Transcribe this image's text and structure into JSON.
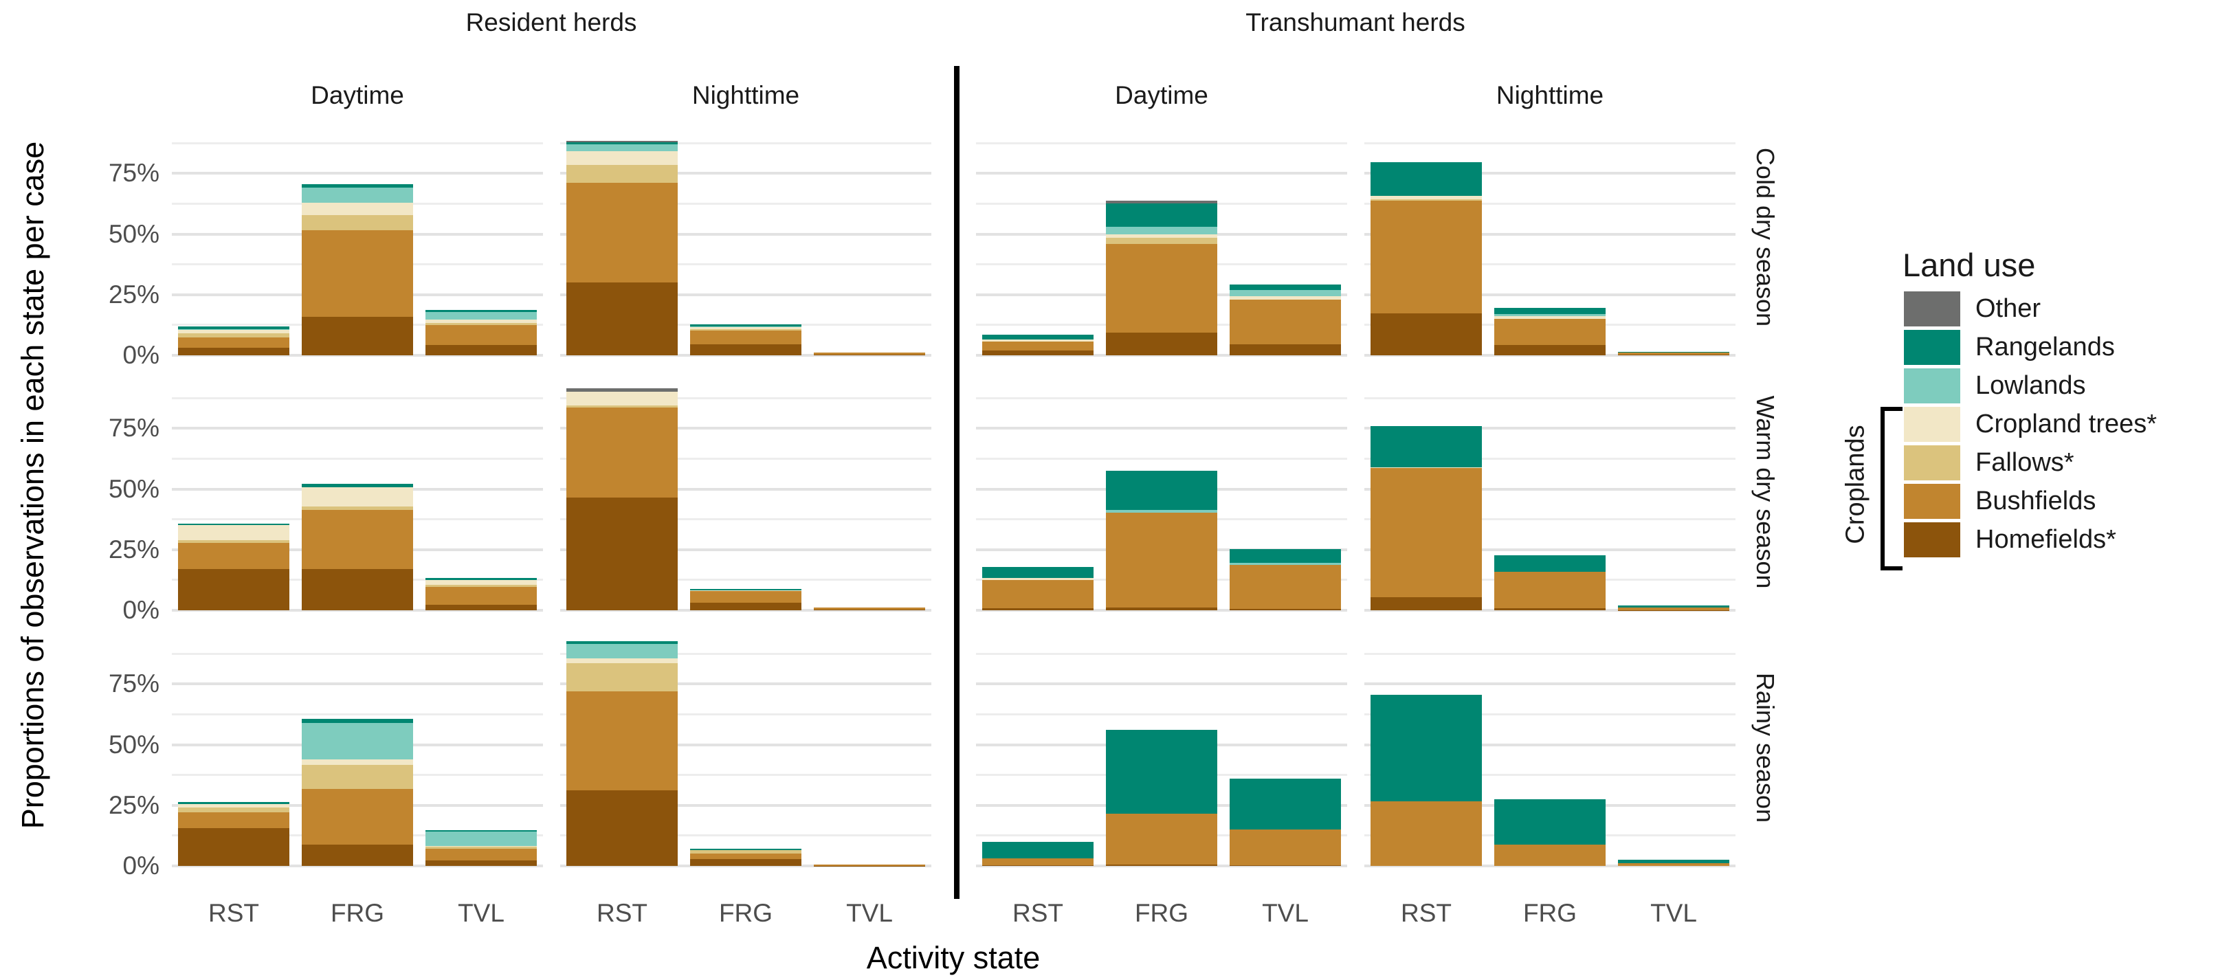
{
  "chart_data": {
    "type": "bar",
    "stacked": true,
    "unit": "percent",
    "title": "",
    "xlabel": "Activity state",
    "ylabel": "Proportions of observations in each state per case",
    "ylim": [
      0,
      100
    ],
    "yticks": [
      "0%",
      "25%",
      "50%",
      "75%"
    ],
    "ytick_values": [
      0,
      25,
      50,
      75
    ],
    "gridlines": {
      "major": [
        0,
        25,
        50,
        75
      ],
      "minor": [
        12.5,
        37.5,
        62.5,
        87.5
      ]
    },
    "categories": [
      "RST",
      "FRG",
      "TVL"
    ],
    "col_groups": [
      "Resident herds",
      "Transhumant herds"
    ],
    "col_labels": [
      "Daytime",
      "Nighttime",
      "Daytime",
      "Nighttime"
    ],
    "row_labels": [
      "Cold dry season",
      "Warm dry season",
      "Rainy season"
    ],
    "stack_order_bottom_to_top": [
      "Homefields*",
      "Bushfields",
      "Fallows*",
      "Cropland trees*",
      "Lowlands",
      "Rangelands",
      "Other"
    ],
    "colors": {
      "Other": "#6D6E6D",
      "Rangelands": "#008671",
      "Lowlands": "#7ECCBE",
      "Cropland trees*": "#F2E7C6",
      "Fallows*": "#DBC37D",
      "Bushfields": "#C1852F",
      "Homefields*": "#8C540C"
    },
    "legend": {
      "title": "Land use",
      "group_label": "Croplands",
      "items": [
        {
          "label": "Other",
          "color": "#6D6E6D"
        },
        {
          "label": "Rangelands",
          "color": "#008671"
        },
        {
          "label": "Lowlands",
          "color": "#7ECCBE"
        },
        {
          "label": "Cropland trees*",
          "color": "#F2E7C6"
        },
        {
          "label": "Fallows*",
          "color": "#DBC37D"
        },
        {
          "label": "Bushfields",
          "color": "#C1852F"
        },
        {
          "label": "Homefields*",
          "color": "#8C540C"
        }
      ]
    },
    "panels": [
      {
        "herd": "Resident herds",
        "time": "Daytime",
        "season": "Cold dry season",
        "values": {
          "RST": [
            3,
            4.5,
            1.5,
            1.5,
            0.3,
            1,
            0
          ],
          "FRG": [
            15.8,
            35.7,
            6.3,
            5.2,
            6.2,
            1.3,
            0
          ],
          "TVL": [
            4.3,
            8.1,
            1,
            1.4,
            3.1,
            0.9,
            0
          ]
        }
      },
      {
        "herd": "Resident herds",
        "time": "Nighttime",
        "season": "Cold dry season",
        "values": {
          "RST": [
            30,
            41,
            7.6,
            5.5,
            2.8,
            1,
            0.6
          ],
          "FRG": [
            4.5,
            5.8,
            0.6,
            0.6,
            0.4,
            0.8,
            0
          ],
          "TVL": [
            0.2,
            0.8,
            0,
            0,
            0,
            0.2,
            0
          ]
        }
      },
      {
        "herd": "Transhumant herds",
        "time": "Daytime",
        "season": "Cold dry season",
        "values": {
          "RST": [
            2,
            3.6,
            0,
            1,
            0,
            2,
            0
          ],
          "FRG": [
            9.3,
            36.6,
            2.5,
            1.6,
            3.1,
            9.6,
            1
          ],
          "TVL": [
            4.4,
            18.6,
            0,
            1.5,
            2.4,
            2.3,
            0
          ]
        }
      },
      {
        "herd": "Transhumant herds",
        "time": "Nighttime",
        "season": "Cold dry season",
        "values": {
          "RST": [
            17.3,
            46.4,
            0.7,
            1.3,
            0,
            14,
            0
          ],
          "FRG": [
            4.2,
            10.9,
            0,
            1,
            0.9,
            2.5,
            0
          ],
          "TVL": [
            0.2,
            0.8,
            0,
            0,
            0,
            0.5,
            0
          ]
        }
      },
      {
        "herd": "Resident herds",
        "time": "Daytime",
        "season": "Warm dry season",
        "values": {
          "RST": [
            17,
            10.7,
            1.2,
            6.1,
            0,
            0.8,
            0
          ],
          "FRG": [
            17,
            24.3,
            1.5,
            8,
            0,
            1.4,
            0
          ],
          "TVL": [
            2.4,
            7.3,
            0.8,
            1.9,
            0,
            0.8,
            0
          ]
        }
      },
      {
        "herd": "Resident herds",
        "time": "Nighttime",
        "season": "Warm dry season",
        "values": {
          "RST": [
            46.6,
            37,
            0.7,
            5.8,
            0,
            0,
            1.4
          ],
          "FRG": [
            3,
            4.8,
            0,
            0.4,
            0,
            0.6,
            0
          ],
          "TVL": [
            0.2,
            0.8,
            0,
            0,
            0,
            0,
            0
          ]
        }
      },
      {
        "herd": "Transhumant herds",
        "time": "Daytime",
        "season": "Warm dry season",
        "values": {
          "RST": [
            0.9,
            11.6,
            0,
            0.8,
            0,
            4.5,
            0
          ],
          "FRG": [
            1.2,
            39.1,
            0,
            0,
            1,
            16.3,
            0
          ],
          "TVL": [
            0.7,
            18.1,
            0,
            0,
            0.8,
            5.7,
            0
          ]
        }
      },
      {
        "herd": "Transhumant herds",
        "time": "Nighttime",
        "season": "Warm dry season",
        "values": {
          "RST": [
            5.3,
            53.3,
            0,
            0.4,
            0,
            17,
            0
          ],
          "FRG": [
            0.8,
            15,
            0,
            0,
            0,
            7,
            0
          ],
          "TVL": [
            0.1,
            1.1,
            0,
            0,
            0,
            0.8,
            0
          ]
        }
      },
      {
        "herd": "Resident herds",
        "time": "Daytime",
        "season": "Rainy season",
        "values": {
          "RST": [
            15.7,
            6.3,
            2,
            1.5,
            0,
            1,
            0
          ],
          "FRG": [
            8.8,
            22.8,
            10.1,
            2.3,
            14.8,
            1.7,
            0
          ],
          "TVL": [
            2.2,
            4.8,
            0.8,
            0.4,
            6,
            0.6,
            0
          ]
        }
      },
      {
        "herd": "Resident herds",
        "time": "Nighttime",
        "season": "Rainy season",
        "values": {
          "RST": [
            31.2,
            40.8,
            11.5,
            2.1,
            5.9,
            1.1,
            0
          ],
          "FRG": [
            2.8,
            2.2,
            1.6,
            0,
            0,
            0.4,
            0
          ],
          "TVL": [
            0.1,
            0.4,
            0,
            0,
            0,
            0.1,
            0
          ]
        }
      },
      {
        "herd": "Transhumant herds",
        "time": "Daytime",
        "season": "Rainy season",
        "values": {
          "RST": [
            0.4,
            2.8,
            0,
            0,
            0,
            6.8,
            0
          ],
          "FRG": [
            0.6,
            20.8,
            0,
            0,
            0,
            34.6,
            0
          ],
          "TVL": [
            0.3,
            14.7,
            0,
            0,
            0,
            21,
            0
          ]
        }
      },
      {
        "herd": "Transhumant herds",
        "time": "Nighttime",
        "season": "Rainy season",
        "values": {
          "RST": [
            0,
            26.5,
            0,
            0,
            0,
            44,
            0
          ],
          "FRG": [
            0,
            8.8,
            0,
            0,
            0,
            18.6,
            0
          ],
          "TVL": [
            0,
            1,
            0,
            0,
            0,
            1.5,
            0
          ]
        }
      }
    ]
  }
}
